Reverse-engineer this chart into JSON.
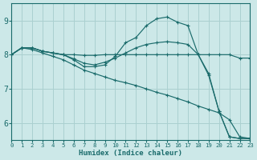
{
  "xlabel": "Humidex (Indice chaleur)",
  "bg_color": "#cce8e8",
  "grid_color": "#aad0d0",
  "line_color": "#1a6b6b",
  "xlim": [
    0,
    23
  ],
  "ylim": [
    5.5,
    9.5
  ],
  "yticks": [
    6,
    7,
    8,
    9
  ],
  "xticks": [
    0,
    1,
    2,
    3,
    4,
    5,
    6,
    7,
    8,
    9,
    10,
    11,
    12,
    13,
    14,
    15,
    16,
    17,
    18,
    19,
    20,
    21,
    22,
    23
  ],
  "lines": [
    {
      "x": [
        0,
        1,
        2,
        3,
        4,
        5,
        6,
        7,
        8,
        9,
        10,
        11,
        12,
        13,
        14,
        15,
        16,
        17,
        18,
        19,
        20,
        21,
        22,
        23
      ],
      "y": [
        8.0,
        8.2,
        8.2,
        8.1,
        8.05,
        8.0,
        7.85,
        7.65,
        7.65,
        7.7,
        7.95,
        8.35,
        8.5,
        8.85,
        9.05,
        9.1,
        8.95,
        8.85,
        8.0,
        7.4,
        6.35,
        5.6,
        5.55,
        5.55
      ]
    },
    {
      "x": [
        0,
        1,
        2,
        3,
        4,
        5,
        6,
        7,
        8,
        9,
        10,
        11,
        12,
        13,
        14,
        15,
        16,
        17,
        18,
        19,
        20,
        21,
        22,
        23
      ],
      "y": [
        8.0,
        8.2,
        8.2,
        8.1,
        8.05,
        8.0,
        8.0,
        7.98,
        7.98,
        8.0,
        8.0,
        8.0,
        8.0,
        8.0,
        8.0,
        8.0,
        8.0,
        8.0,
        8.0,
        8.0,
        8.0,
        8.0,
        7.9,
        7.9
      ]
    },
    {
      "x": [
        0,
        1,
        2,
        3,
        4,
        5,
        6,
        7,
        8,
        9,
        10,
        11,
        12,
        13,
        14,
        15,
        16,
        17,
        18,
        19,
        20,
        21,
        22,
        23
      ],
      "y": [
        8.0,
        8.2,
        8.15,
        8.05,
        7.95,
        7.85,
        7.7,
        7.55,
        7.45,
        7.35,
        7.25,
        7.18,
        7.1,
        7.0,
        6.9,
        6.82,
        6.72,
        6.62,
        6.5,
        6.4,
        6.3,
        6.1,
        5.6,
        5.55
      ]
    },
    {
      "x": [
        0,
        1,
        2,
        3,
        4,
        5,
        6,
        7,
        8,
        9,
        10,
        11,
        12,
        13,
        14,
        15,
        16,
        17,
        18,
        19,
        20,
        21,
        22,
        23
      ],
      "y": [
        8.0,
        8.2,
        8.2,
        8.1,
        8.05,
        8.0,
        7.88,
        7.75,
        7.7,
        7.78,
        7.9,
        8.05,
        8.2,
        8.3,
        8.35,
        8.38,
        8.35,
        8.3,
        8.0,
        7.45,
        6.35,
        5.6,
        5.55,
        5.55
      ]
    }
  ]
}
